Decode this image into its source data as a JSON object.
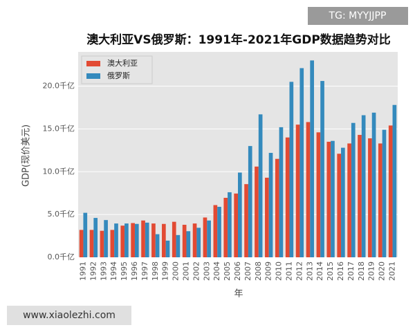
{
  "chart_data": {
    "type": "bar",
    "title": "澳大利亚VS俄罗斯：1991年-2021年GDP数据趋势对比",
    "x_label": "年",
    "y_label": "GDP(现价美元)",
    "categories": [
      "1991",
      "1992",
      "1993",
      "1994",
      "1995",
      "1996",
      "1997",
      "1998",
      "1999",
      "2000",
      "2001",
      "2002",
      "2003",
      "2004",
      "2005",
      "2006",
      "2007",
      "2008",
      "2009",
      "2010",
      "2011",
      "2012",
      "2013",
      "2014",
      "2015",
      "2016",
      "2017",
      "2018",
      "2019",
      "2020",
      "2021"
    ],
    "series": [
      {
        "name": "澳大利亚",
        "color": "#e24a33",
        "values": [
          3.2,
          3.2,
          3.1,
          3.2,
          3.7,
          4.0,
          4.3,
          3.95,
          3.9,
          4.15,
          3.8,
          3.95,
          4.65,
          6.1,
          6.95,
          7.45,
          8.55,
          10.6,
          9.3,
          11.5,
          14.0,
          15.5,
          15.8,
          14.6,
          13.5,
          12.1,
          13.3,
          14.3,
          13.9,
          13.3,
          15.4
        ]
      },
      {
        "name": "俄罗斯",
        "color": "#348abd",
        "values": [
          5.2,
          4.6,
          4.35,
          3.95,
          3.95,
          3.9,
          4.05,
          2.7,
          1.95,
          2.6,
          3.05,
          3.45,
          4.3,
          5.9,
          7.6,
          9.9,
          13.0,
          16.7,
          12.2,
          15.2,
          20.5,
          22.1,
          23.0,
          20.6,
          13.6,
          12.8,
          15.7,
          16.6,
          16.9,
          14.9,
          17.8
        ]
      }
    ],
    "ylim": [
      0,
      24
    ],
    "yticks": [
      {
        "value": 0,
        "label": "0.0千亿"
      },
      {
        "value": 5,
        "label": "5.0千亿"
      },
      {
        "value": 10,
        "label": "10.0千亿"
      },
      {
        "value": 15,
        "label": "15.0千亿"
      },
      {
        "value": 20,
        "label": "20.0千亿"
      }
    ],
    "grid": true,
    "legend": "upper-left"
  },
  "watermarks": [
    "TG: MYYJJPP",
    "www.xiaolezhi.com"
  ]
}
